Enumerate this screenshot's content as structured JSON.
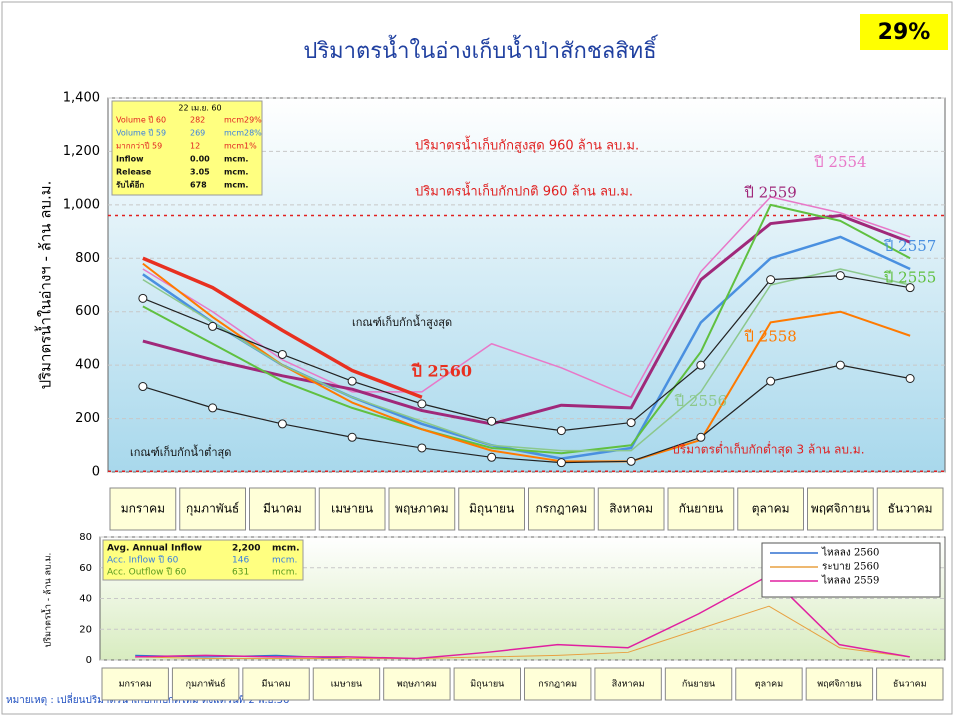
{
  "badge": "29%",
  "note": "หมายเหตุ : เปลี่ยนปริมาตรน้ำเก็บกักปกติใหม่ ตั้งแต่วันที่ 2 พ.ย.56",
  "chart_data": [
    {
      "type": "line",
      "title": "ปริมาตรน้ำในอ่างเก็บน้ำป่าสักชลสิทธิ์",
      "y_label": "ปริมาตรน้ำในอ่างฯ - ล้าน ลบ.ม.",
      "categories": [
        "มกราคม",
        "กุมภาพันธ์",
        "มีนาคม",
        "เมษายน",
        "พฤษภาคม",
        "มิถุนายน",
        "กรกฎาคม",
        "สิงหาคม",
        "กันยายน",
        "ตุลาคม",
        "พฤศจิกายน",
        "ธันวาคม"
      ],
      "ylim": [
        0,
        1400
      ],
      "yticks": [
        0,
        200,
        400,
        600,
        800,
        {
          "value": 1000,
          "label": "1,000"
        },
        {
          "value": 1200,
          "label": "1,200"
        },
        {
          "value": 1400,
          "label": "1,400"
        }
      ],
      "grid": true,
      "reference_lines": [
        {
          "value": 960,
          "color": "#e02020"
        },
        {
          "value": 3,
          "color": "#e02020"
        }
      ],
      "annotations": [
        "ปริมาตรน้ำเก็บกักสูงสุด 960 ล้าน ลบ.ม.",
        "ปริมาตรน้ำเก็บกักปกติ  960  ล้าน ลบ.ม.",
        "ปริมาตรต่ำเก็บกักต่ำสุด 3 ล้าน ลบ.ม.",
        "เกณฑ์เก็บกักน้ำสูงสุด",
        "เกณฑ์เก็บกักน้ำต่ำสุด"
      ],
      "info_box": {
        "date": "22 เม.ย. 60",
        "rows": [
          [
            "Volume ปี 60",
            "282",
            "mcm.",
            "29%"
          ],
          [
            "Volume ปี 59",
            "269",
            "mcm.",
            "28%"
          ],
          [
            "มากกว่าปี 59",
            "12",
            "mcm.",
            "1%"
          ],
          [
            "Inflow",
            "0.00",
            "mcm."
          ],
          [
            "Release",
            "3.05",
            "mcm."
          ],
          [
            "รับได้อีก",
            "678",
            "mcm."
          ]
        ]
      },
      "series": [
        {
          "name": "ปี 2554",
          "color": "#e878c8",
          "width": 1.5,
          "values": [
            760,
            600,
            420,
            300,
            300,
            480,
            390,
            280,
            750,
            1030,
            970,
            880
          ]
        },
        {
          "name": "ปี 2559",
          "color": "#a0287a",
          "width": 3,
          "values": [
            490,
            420,
            360,
            310,
            230,
            180,
            250,
            240,
            720,
            930,
            960,
            860
          ]
        },
        {
          "name": "ปี 2557",
          "color": "#4a90e0",
          "width": 2.5,
          "values": [
            740,
            560,
            400,
            280,
            180,
            100,
            50,
            90,
            560,
            800,
            880,
            760
          ]
        },
        {
          "name": "ปี 2555",
          "color": "#60c040",
          "width": 2,
          "values": [
            620,
            480,
            340,
            240,
            160,
            90,
            70,
            100,
            450,
            1000,
            940,
            800
          ]
        },
        {
          "name": "ปี 2558",
          "color": "#ff7a00",
          "width": 2,
          "values": [
            780,
            580,
            400,
            260,
            160,
            80,
            40,
            40,
            120,
            560,
            600,
            510
          ]
        },
        {
          "name": "ปี 2556",
          "color": "#8cc88c",
          "width": 1.5,
          "values": [
            720,
            560,
            400,
            280,
            190,
            100,
            80,
            80,
            300,
            700,
            760,
            700
          ]
        },
        {
          "name": "ปี 2560",
          "color": "#e83020",
          "width": 3.5,
          "values": [
            800,
            690,
            530,
            380,
            280,
            null,
            null,
            null,
            null,
            null,
            null,
            null
          ]
        },
        {
          "color": "#222222",
          "width": 1.2,
          "markers": true,
          "values": [
            650,
            545,
            440,
            340,
            255,
            190,
            155,
            185,
            400,
            720,
            735,
            690
          ]
        },
        {
          "color": "#222222",
          "width": 1.2,
          "markers": true,
          "values": [
            320,
            240,
            180,
            130,
            90,
            55,
            35,
            40,
            130,
            340,
            400,
            350
          ]
        }
      ]
    },
    {
      "type": "line",
      "y_label": "ปริมาตรน้ำ - ล้าน ลบ.ม.",
      "categories": [
        "มกราคม",
        "กุมภาพันธ์",
        "มีนาคม",
        "เมษายน",
        "พฤษภาคม",
        "มิถุนายน",
        "กรกฎาคม",
        "สิงหาคม",
        "กันยายน",
        "ตุลาคม",
        "พฤศจิกายน",
        "ธันวาคม"
      ],
      "ylim": [
        0,
        80
      ],
      "yticks": [
        0,
        20,
        40,
        60,
        80
      ],
      "grid": true,
      "info_box": {
        "rows": [
          [
            "Avg. Annual Inflow",
            "2,200",
            "mcm."
          ],
          [
            "Acc. Inflow ปี 60",
            "146",
            "mcm."
          ],
          [
            "Acc. Outflow ปี 60",
            "631",
            "mcm."
          ]
        ]
      },
      "series": [
        {
          "name": "ไหลลง 2560",
          "color": "#3070d0",
          "width": 1.2,
          "values": [
            3,
            2,
            3,
            1,
            null,
            null,
            null,
            null,
            null,
            null,
            null,
            null
          ]
        },
        {
          "name": "ระบาย 2560",
          "color": "#e8a040",
          "width": 1,
          "values": [
            2,
            1,
            1,
            1,
            1,
            2,
            3,
            5,
            20,
            35,
            8,
            2
          ]
        },
        {
          "name": "ไหลลง 2559",
          "color": "#e020a0",
          "width": 1.5,
          "values": [
            2,
            3,
            2,
            2,
            1,
            5,
            10,
            8,
            30,
            55,
            10,
            2
          ]
        }
      ]
    }
  ]
}
